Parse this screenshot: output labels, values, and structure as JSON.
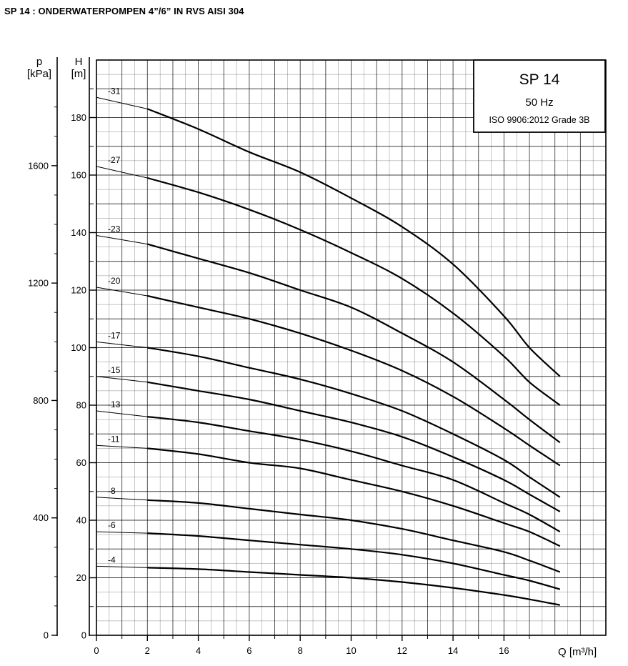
{
  "page": {
    "title": "SP 14 : ONDERWATERPOMPEN 4”/6” IN RVS AISI 304"
  },
  "info_box": {
    "model": "SP 14",
    "frequency": "50 Hz",
    "standard": "ISO 9906:2012 Grade 3B"
  },
  "chart_data": {
    "type": "line",
    "xlabel": "Q [m³/h]",
    "ylabel": "H\n[m]",
    "y2label": "p\n[kPa]",
    "xlim": [
      0,
      20
    ],
    "ylim": [
      0,
      200
    ],
    "y2lim": [
      0,
      1960
    ],
    "x_ticks": [
      "0",
      "2",
      "4",
      "6",
      "8",
      "10",
      "12",
      "14",
      "16"
    ],
    "y_ticks": [
      "0",
      "20",
      "40",
      "60",
      "80",
      "100",
      "120",
      "140",
      "160",
      "180"
    ],
    "y2_ticks": [
      "0",
      "400",
      "800",
      "1200",
      "1600"
    ],
    "grid": true,
    "line_color": "#000000",
    "x": [
      0,
      2,
      4,
      6,
      8,
      10,
      12,
      14,
      16,
      17,
      18.2
    ],
    "series": [
      {
        "name": "-31",
        "values": [
          187,
          183,
          176,
          168,
          161,
          152,
          142,
          129,
          111,
          100,
          90
        ]
      },
      {
        "name": "-27",
        "values": [
          163,
          159,
          154,
          148,
          141,
          133,
          124,
          112,
          97,
          88,
          80
        ]
      },
      {
        "name": "-23",
        "values": [
          139,
          136,
          131,
          126,
          120,
          114,
          105,
          95,
          82,
          75,
          67
        ]
      },
      {
        "name": "-20",
        "values": [
          121,
          118,
          114,
          110,
          105,
          99,
          92,
          83,
          72,
          66,
          59
        ]
      },
      {
        "name": "-17",
        "values": [
          102,
          100,
          97,
          93,
          89,
          84,
          78,
          70,
          61,
          55,
          48
        ]
      },
      {
        "name": "-15",
        "values": [
          90,
          88,
          85,
          82,
          78,
          74,
          69,
          62,
          54,
          49,
          43
        ]
      },
      {
        "name": "-13",
        "values": [
          78,
          76,
          74,
          71,
          68,
          64,
          59,
          54,
          46,
          42,
          36
        ]
      },
      {
        "name": "-11",
        "values": [
          66,
          65,
          63,
          60,
          58,
          54,
          50,
          45,
          39,
          36,
          31
        ]
      },
      {
        "name": "-8",
        "values": [
          48,
          47,
          46,
          44,
          42,
          40,
          37,
          33,
          29,
          26,
          22
        ]
      },
      {
        "name": "-6",
        "values": [
          36,
          35.5,
          34.5,
          33,
          31.5,
          30,
          28,
          25,
          21,
          19,
          16
        ]
      },
      {
        "name": "-4",
        "values": [
          24,
          23.5,
          23,
          22,
          21,
          20,
          18.5,
          16.5,
          14,
          12.5,
          10.5
        ]
      }
    ]
  }
}
